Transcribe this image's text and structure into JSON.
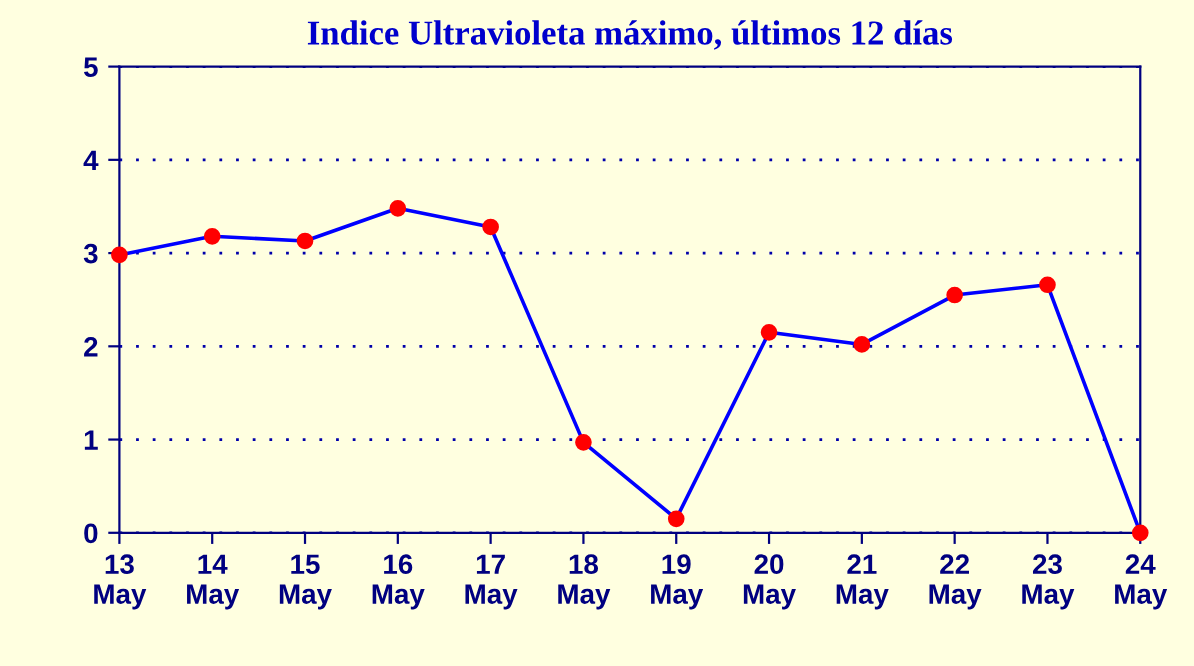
{
  "chart_data": {
    "type": "line",
    "title": "Indice Ultravioleta máximo, últimos 12 días",
    "categories": [
      "13\nMay",
      "14\nMay",
      "15\nMay",
      "16\nMay",
      "17\nMay",
      "18\nMay",
      "19\nMay",
      "20\nMay",
      "21\nMay",
      "22\nMay",
      "23\nMay",
      "24\nMay"
    ],
    "series": [
      {
        "color": "#0000ff",
        "values": [
          2.98,
          3.18,
          3.13,
          3.48,
          3.28,
          0.97,
          0.15,
          2.15,
          2.02,
          2.55,
          2.66,
          0.0
        ]
      }
    ],
    "marker": "circle",
    "line_style": "solid",
    "ylim": [
      0,
      5
    ],
    "yticks": [
      0,
      1,
      2,
      3,
      4,
      5
    ],
    "grid": "y"
  }
}
